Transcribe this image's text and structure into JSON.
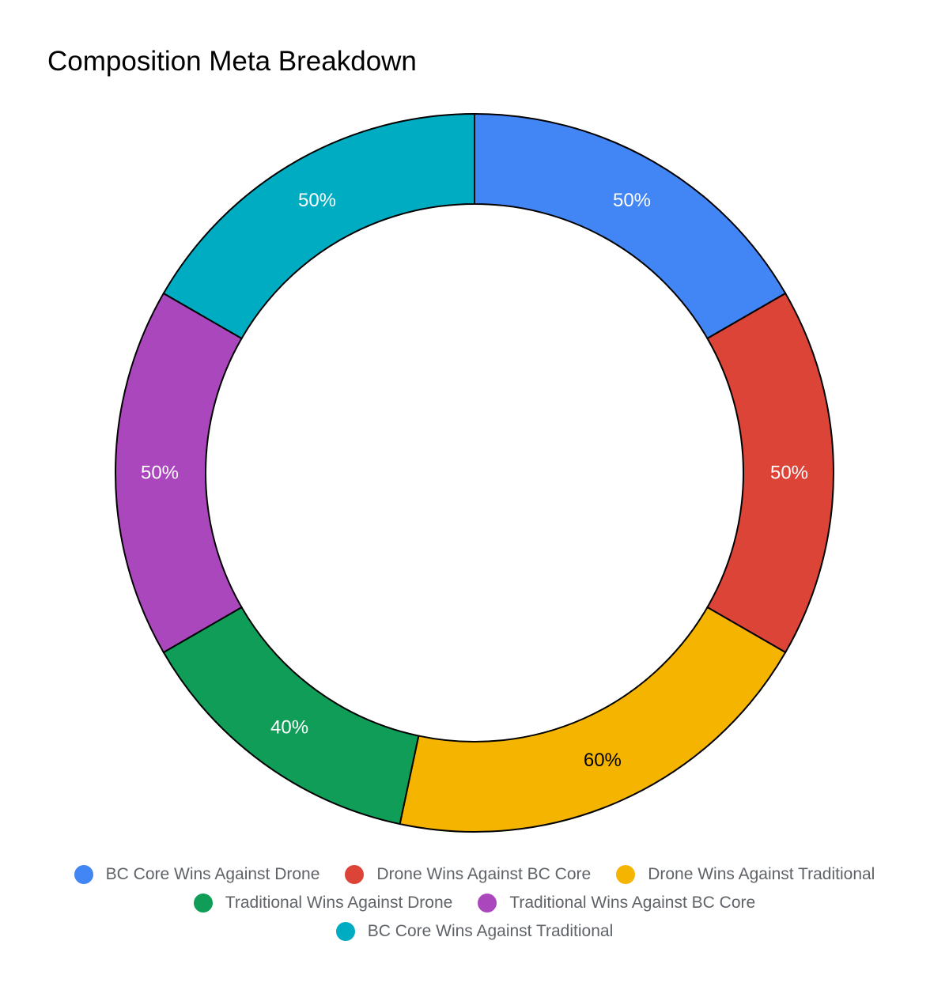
{
  "chart_data": {
    "type": "pie",
    "title": "Composition Meta Breakdown",
    "donut": true,
    "legend_position": "bottom",
    "categories": [
      "BC Core Wins Against Drone",
      "Drone Wins Against BC Core",
      "Drone Wins Against Traditional",
      "Traditional Wins Against Drone",
      "Traditional Wins Against BC Core",
      "BC Core Wins Against Traditional"
    ],
    "values": [
      50,
      50,
      60,
      40,
      50,
      50
    ],
    "data_labels": [
      "50%",
      "50%",
      "60%",
      "40%",
      "50%",
      "50%"
    ],
    "colors": [
      "#4285f4",
      "#db4437",
      "#f4b400",
      "#0f9d58",
      "#ab47bc",
      "#00acc1"
    ],
    "label_colors": [
      "#ffffff",
      "#ffffff",
      "#000000",
      "#ffffff",
      "#ffffff",
      "#ffffff"
    ]
  }
}
